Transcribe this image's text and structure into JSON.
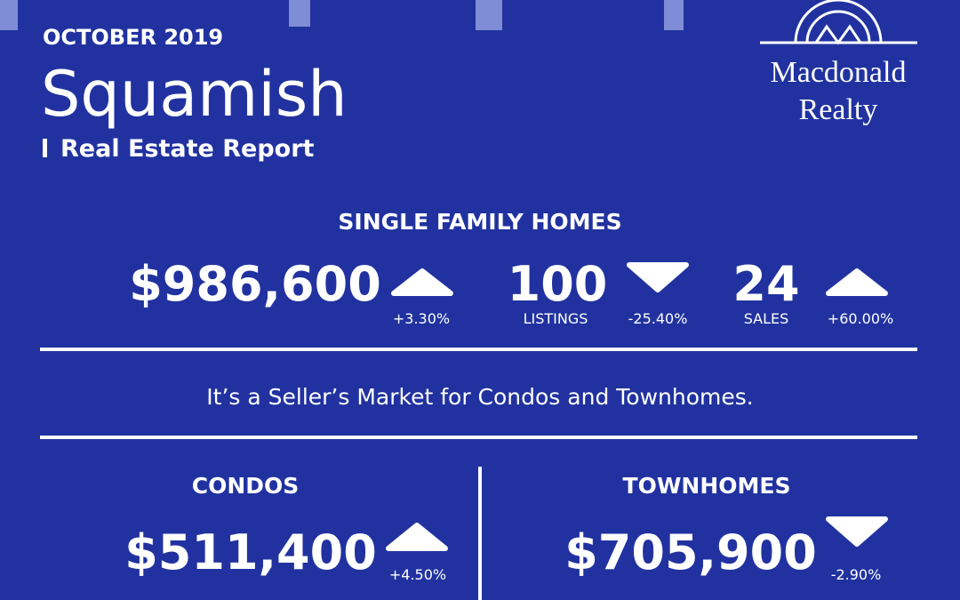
{
  "header": {
    "date": "OCTOBER 2019",
    "city": "Squamish",
    "subtitle": "Real Estate Report"
  },
  "logo": {
    "line1": "Macdonald",
    "line2": "Realty"
  },
  "single_family": {
    "title": "SINGLE FAMILY HOMES",
    "price": {
      "value": "$986,600",
      "change": "+3.30%",
      "trend": "up"
    },
    "listings": {
      "value": "100",
      "label": "LISTINGS",
      "change": "-25.40%",
      "trend": "down"
    },
    "sales": {
      "value": "24",
      "label": "SALES",
      "change": "+60.00%",
      "trend": "up"
    }
  },
  "message": "It’s a Seller’s Market for Condos and Townhomes.",
  "condos": {
    "title": "CONDOS",
    "price": "$511,400",
    "change": "+4.50%",
    "trend": "up"
  },
  "townhomes": {
    "title": "TOWNHOMES",
    "price": "$705,900",
    "change": "-2.90%",
    "trend": "down"
  }
}
